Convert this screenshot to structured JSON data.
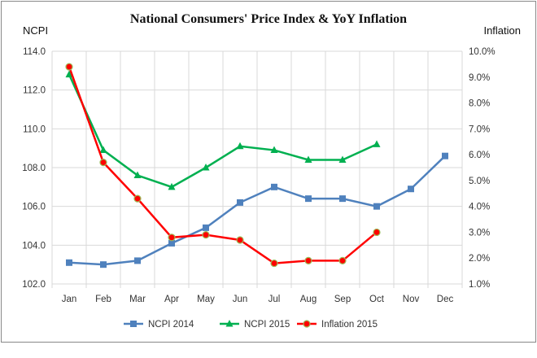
{
  "chart_data": {
    "type": "line",
    "title": "National Consumers' Price Index & YoY Inflation",
    "ylabel_left": "NCPI",
    "ylabel_right": "Inflation",
    "categories": [
      "Jan",
      "Feb",
      "Mar",
      "Apr",
      "May",
      "Jun",
      "Jul",
      "Aug",
      "Sep",
      "Oct",
      "Nov",
      "Dec"
    ],
    "ylim_left": [
      102,
      114
    ],
    "yticks_left": [
      "102.0",
      "104.0",
      "106.0",
      "108.0",
      "110.0",
      "112.0",
      "114.0"
    ],
    "ylim_right": [
      1,
      10
    ],
    "yticks_right": [
      "1.0%",
      "2.0%",
      "3.0%",
      "4.0%",
      "5.0%",
      "6.0%",
      "7.0%",
      "8.0%",
      "9.0%",
      "10.0%"
    ],
    "grid": true,
    "legend_position": "bottom",
    "series": [
      {
        "name": "NCPI 2014",
        "axis": "left",
        "color": "#4f81bd",
        "marker": "square",
        "values": [
          103.1,
          103.0,
          103.2,
          104.1,
          104.9,
          106.2,
          107.0,
          106.4,
          106.4,
          106.0,
          106.9,
          108.6
        ]
      },
      {
        "name": "NCPI 2015",
        "axis": "left",
        "color": "#00b050",
        "marker": "triangle",
        "values": [
          112.8,
          108.9,
          107.6,
          107.0,
          108.0,
          109.1,
          108.9,
          108.4,
          108.4,
          109.2,
          null,
          null
        ]
      },
      {
        "name": "Inflation 2015",
        "axis": "right",
        "color": "#ff0000",
        "marker": "circle",
        "values": [
          9.4,
          5.7,
          4.3,
          2.8,
          2.9,
          2.7,
          1.8,
          1.9,
          1.9,
          3.0,
          null,
          null
        ]
      }
    ]
  }
}
